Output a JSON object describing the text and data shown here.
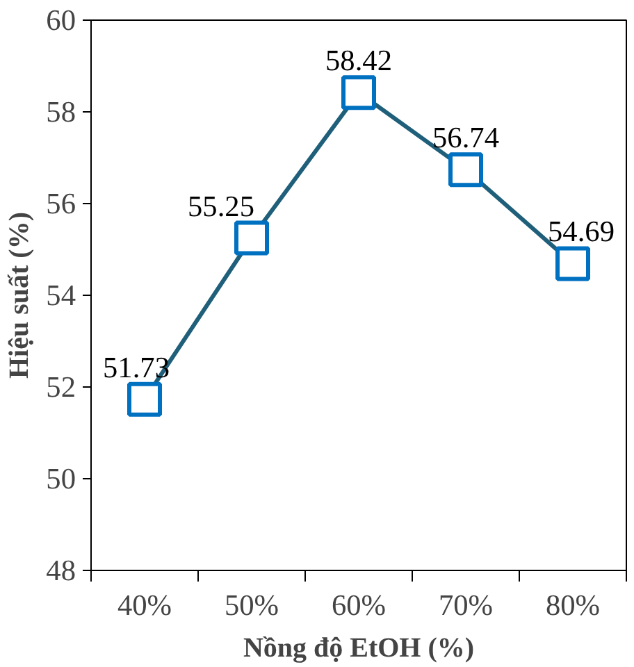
{
  "chart_data": {
    "type": "line",
    "xlabel": "Nồng độ EtOH (%)",
    "ylabel": "Hiệu suất (%)",
    "categories": [
      "40%",
      "50%",
      "60%",
      "70%",
      "80%"
    ],
    "series": [
      {
        "color": "#1f5f7a",
        "values": [
          51.73,
          55.25,
          58.42,
          56.74,
          54.69
        ]
      }
    ],
    "ylim": [
      48,
      60
    ],
    "yticks": [
      48,
      50,
      52,
      54,
      56,
      58,
      60
    ],
    "marker": "square",
    "line_style": "solid",
    "data_labels": true,
    "grid": false
  }
}
